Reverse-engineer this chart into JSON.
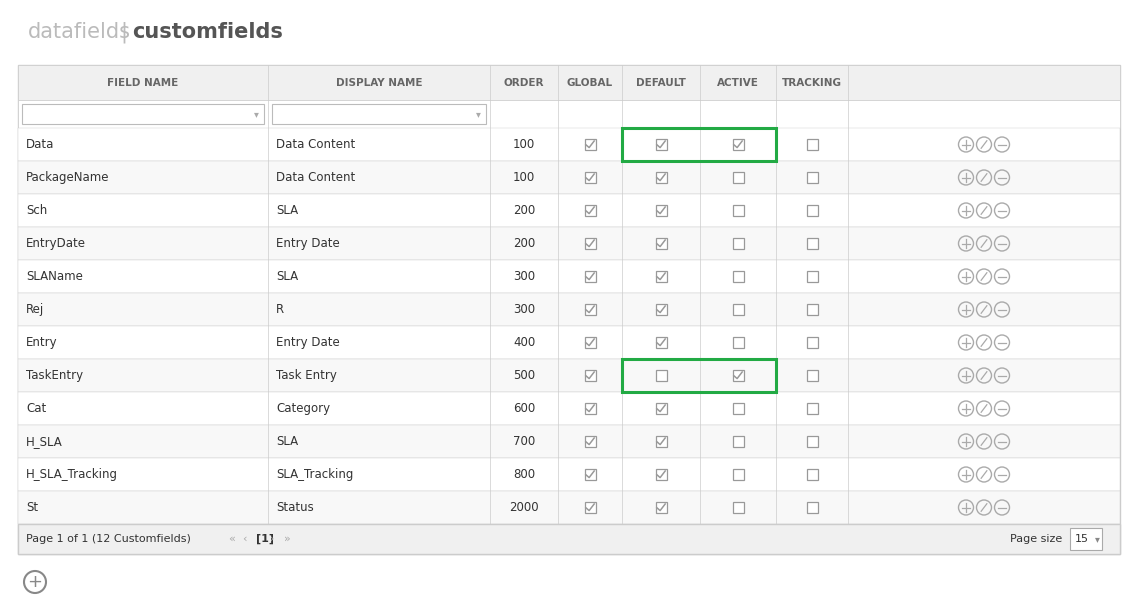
{
  "title_left": "datafields",
  "title_right": "customfields",
  "bg_color": "#ffffff",
  "table_border_color": "#cccccc",
  "header_bg": "#f0f0f0",
  "header_text_color": "#666666",
  "row_bg_even": "#ffffff",
  "row_bg_odd": "#f8f8f8",
  "highlight_green": "#22aa44",
  "columns": [
    "FIELD NAME",
    "DISPLAY NAME",
    "ORDER",
    "GLOBAL",
    "DEFAULT",
    "ACTIVE",
    "TRACKING",
    ""
  ],
  "rows": [
    [
      "Data",
      "Data Content",
      "100",
      true,
      true,
      true,
      false
    ],
    [
      "PackageName",
      "Data Content",
      "100",
      true,
      true,
      false,
      false
    ],
    [
      "Sch",
      "SLA",
      "200",
      true,
      true,
      false,
      false
    ],
    [
      "EntryDate",
      "Entry Date",
      "200",
      true,
      true,
      false,
      false
    ],
    [
      "SLAName",
      "SLA",
      "300",
      true,
      true,
      false,
      false
    ],
    [
      "Rej",
      "R",
      "300",
      true,
      true,
      false,
      false
    ],
    [
      "Entry",
      "Entry Date",
      "400",
      true,
      true,
      false,
      false
    ],
    [
      "TaskEntry",
      "Task Entry",
      "500",
      true,
      false,
      true,
      false
    ],
    [
      "Cat",
      "Category",
      "600",
      true,
      true,
      false,
      false
    ],
    [
      "H_SLA",
      "SLA",
      "700",
      true,
      true,
      false,
      false
    ],
    [
      "H_SLA_Tracking",
      "SLA_Tracking",
      "800",
      true,
      true,
      false,
      false
    ],
    [
      "St",
      "Status",
      "2000",
      true,
      true,
      false,
      false
    ]
  ],
  "green_highlight_rows": [
    0,
    7
  ],
  "footer_text": "Page 1 of 1 (12 Customfields)",
  "page_size_val": "15",
  "text_color": "#333333",
  "icon_color": "#aaaaaa",
  "checkbox_color": "#999999",
  "action_color": "#aaaaaa"
}
